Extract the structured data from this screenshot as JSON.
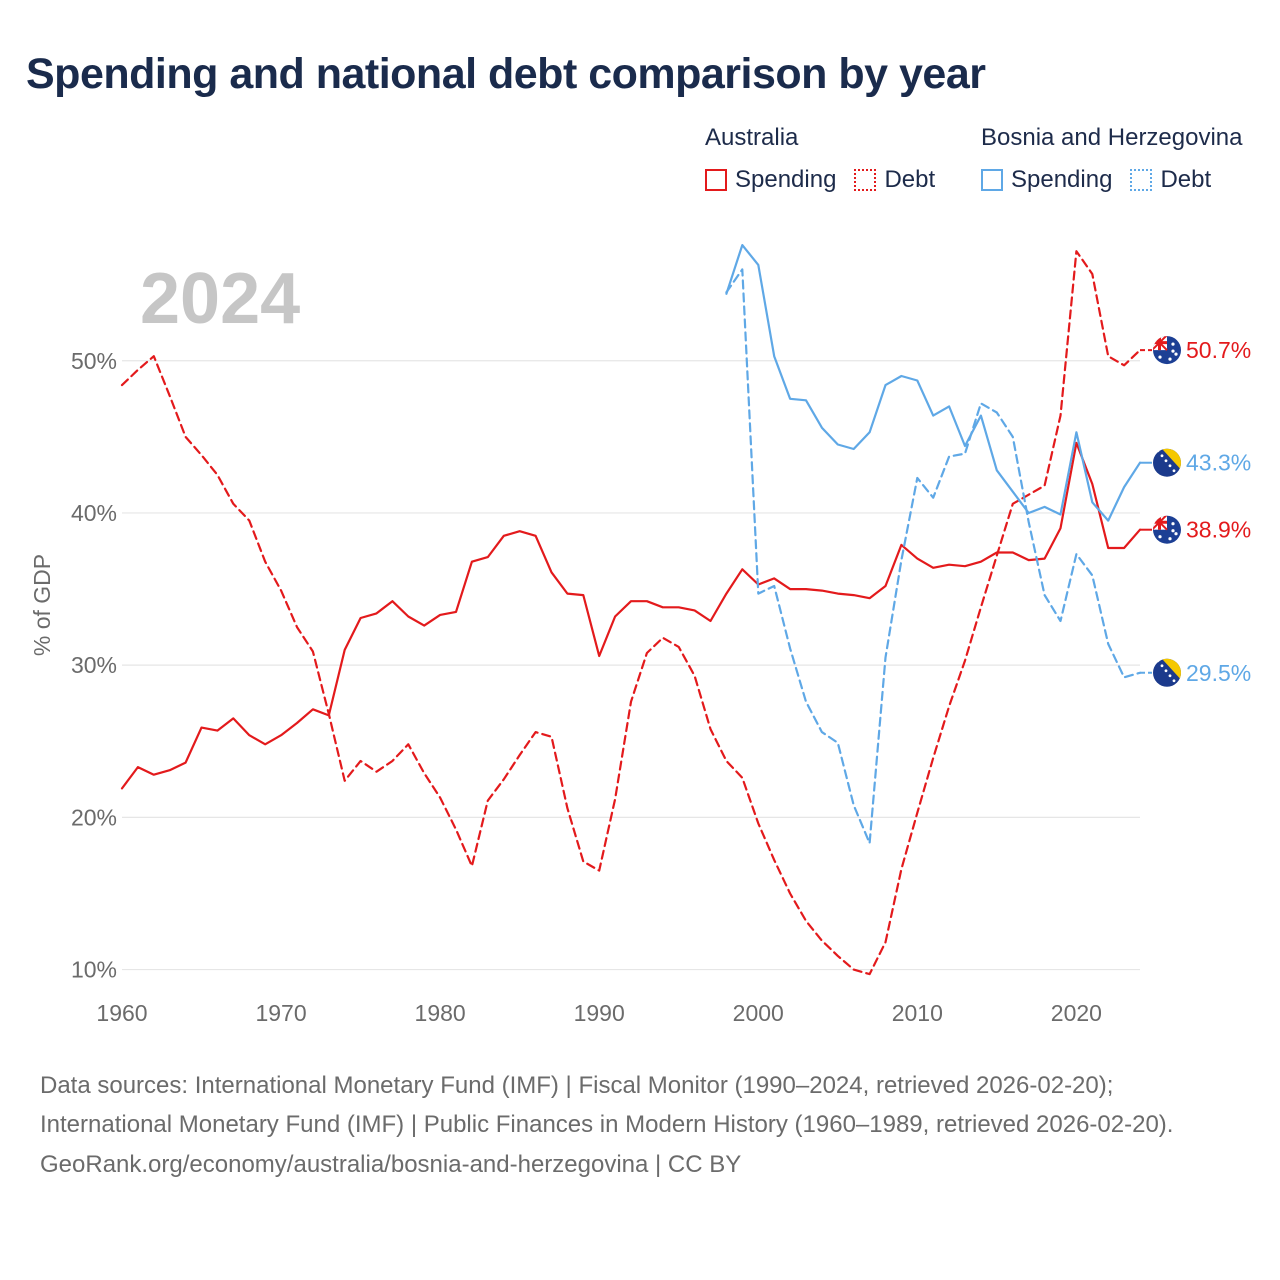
{
  "title": "Spending and national debt comparison by year",
  "year_overlay": "2024",
  "legend": {
    "groups": [
      {
        "country": "Australia",
        "color": "#e31a1c",
        "items": [
          {
            "label": "Spending",
            "style": "solid"
          },
          {
            "label": "Debt",
            "style": "dotted"
          }
        ]
      },
      {
        "country": "Bosnia and Herzegovina",
        "color": "#5fa8e6",
        "items": [
          {
            "label": "Spending",
            "style": "solid"
          },
          {
            "label": "Debt",
            "style": "dotted"
          }
        ]
      }
    ]
  },
  "footer": {
    "sources": "Data sources: International Monetary Fund (IMF) | Fiscal Monitor (1990–2024, retrieved 2026-02-20); International Monetary Fund (IMF) | Public Finances in Modern History (1960–1989, retrieved 2026-02-20).",
    "credit": "GeoRank.org/economy/australia/bosnia-and-herzegovina | CC BY"
  },
  "chart_data": {
    "type": "line",
    "title": "Spending and national debt comparison by year",
    "xlabel": "",
    "ylabel": "% of GDP",
    "xlim": [
      1960,
      2024
    ],
    "ylim": [
      8,
      58
    ],
    "x_ticks": [
      1960,
      1970,
      1980,
      1990,
      2000,
      2010,
      2020
    ],
    "y_ticks": [
      10,
      20,
      30,
      40,
      50
    ],
    "y_tick_labels": [
      "10%",
      "20%",
      "30%",
      "40%",
      "50%"
    ],
    "grid": true,
    "series": [
      {
        "name": "Australia Spending",
        "color": "#e31a1c",
        "dash": "solid",
        "end_label": "38.9%",
        "flag": "australia-flag",
        "x": [
          1960,
          1961,
          1962,
          1963,
          1964,
          1965,
          1966,
          1967,
          1968,
          1969,
          1970,
          1971,
          1972,
          1973,
          1974,
          1975,
          1976,
          1977,
          1978,
          1979,
          1980,
          1981,
          1982,
          1983,
          1984,
          1985,
          1986,
          1987,
          1988,
          1989,
          1990,
          1991,
          1992,
          1993,
          1994,
          1995,
          1996,
          1997,
          1998,
          1999,
          2000,
          2001,
          2002,
          2003,
          2004,
          2005,
          2006,
          2007,
          2008,
          2009,
          2010,
          2011,
          2012,
          2013,
          2014,
          2015,
          2016,
          2017,
          2018,
          2019,
          2020,
          2021,
          2022,
          2023,
          2024
        ],
        "y": [
          21.9,
          23.3,
          22.8,
          23.1,
          23.6,
          25.9,
          25.7,
          26.5,
          25.4,
          24.8,
          25.4,
          26.2,
          27.1,
          26.7,
          31.0,
          33.1,
          33.4,
          34.2,
          33.2,
          32.6,
          33.3,
          33.5,
          36.8,
          37.1,
          38.5,
          38.8,
          38.5,
          36.1,
          34.7,
          34.6,
          30.6,
          33.2,
          34.2,
          34.2,
          33.8,
          33.8,
          33.6,
          32.9,
          34.7,
          36.3,
          35.3,
          35.7,
          35.0,
          35.0,
          34.9,
          34.7,
          34.6,
          34.4,
          35.2,
          37.9,
          37.0,
          36.4,
          36.6,
          36.5,
          36.8,
          37.4,
          37.4,
          36.9,
          37.0,
          39.0,
          44.6,
          41.9,
          37.7,
          37.7,
          38.9
        ]
      },
      {
        "name": "Australia Debt",
        "color": "#e31a1c",
        "dash": "dashed",
        "end_label": "50.7%",
        "flag": "australia-flag",
        "x": [
          1960,
          1961,
          1962,
          1963,
          1964,
          1965,
          1966,
          1967,
          1968,
          1969,
          1970,
          1971,
          1972,
          1973,
          1974,
          1975,
          1976,
          1977,
          1978,
          1979,
          1980,
          1981,
          1982,
          1983,
          1984,
          1985,
          1986,
          1987,
          1988,
          1989,
          1990,
          1991,
          1992,
          1993,
          1994,
          1995,
          1996,
          1997,
          1998,
          1999,
          2000,
          2001,
          2002,
          2003,
          2004,
          2005,
          2006,
          2007,
          2008,
          2009,
          2010,
          2011,
          2012,
          2013,
          2014,
          2015,
          2016,
          2017,
          2018,
          2019,
          2020,
          2021,
          2022,
          2023,
          2024
        ],
        "y": [
          48.4,
          49.4,
          50.3,
          47.7,
          45.0,
          43.8,
          42.5,
          40.6,
          39.5,
          36.8,
          34.9,
          32.5,
          30.9,
          26.8,
          22.4,
          23.7,
          23.0,
          23.7,
          24.8,
          22.9,
          21.3,
          19.2,
          16.8,
          21.1,
          22.5,
          24.1,
          25.6,
          25.3,
          20.6,
          17.1,
          16.5,
          21.2,
          27.6,
          30.8,
          31.8,
          31.2,
          29.3,
          25.8,
          23.7,
          22.6,
          19.6,
          17.2,
          15.0,
          13.2,
          11.9,
          10.9,
          10.0,
          9.7,
          11.8,
          16.6,
          20.3,
          23.9,
          27.3,
          30.3,
          33.8,
          37.2,
          40.6,
          41.2,
          41.8,
          46.4,
          57.2,
          55.7,
          50.3,
          49.7,
          50.7
        ]
      },
      {
        "name": "Bosnia and Herzegovina Spending",
        "color": "#5fa8e6",
        "dash": "solid",
        "end_label": "43.3%",
        "flag": "bosnia-flag",
        "x": [
          1998,
          1999,
          2000,
          2001,
          2002,
          2003,
          2004,
          2005,
          2006,
          2007,
          2008,
          2009,
          2010,
          2011,
          2012,
          2013,
          2014,
          2015,
          2016,
          2017,
          2018,
          2019,
          2020,
          2021,
          2022,
          2023,
          2024
        ],
        "y": [
          54.4,
          57.6,
          56.3,
          50.3,
          47.5,
          47.4,
          45.6,
          44.5,
          44.2,
          45.3,
          48.4,
          49.0,
          48.7,
          46.4,
          47.0,
          44.4,
          46.4,
          42.8,
          41.4,
          40.0,
          40.4,
          39.9,
          45.3,
          40.7,
          39.5,
          41.7,
          43.3
        ]
      },
      {
        "name": "Bosnia and Herzegovina Debt",
        "color": "#5fa8e6",
        "dash": "dashed",
        "end_label": "29.5%",
        "flag": "bosnia-flag",
        "x": [
          1998,
          1999,
          2000,
          2001,
          2002,
          2003,
          2004,
          2005,
          2006,
          2007,
          2008,
          2009,
          2010,
          2011,
          2012,
          2013,
          2014,
          2015,
          2016,
          2017,
          2018,
          2019,
          2020,
          2021,
          2022,
          2023,
          2024
        ],
        "y": [
          54.5,
          56.0,
          34.7,
          35.2,
          31.1,
          27.6,
          25.6,
          24.9,
          20.8,
          18.3,
          30.5,
          36.9,
          42.3,
          41.0,
          43.7,
          43.9,
          47.2,
          46.6,
          45.0,
          39.4,
          34.6,
          32.9,
          37.3,
          35.9,
          31.4,
          29.2,
          29.5
        ]
      }
    ]
  }
}
